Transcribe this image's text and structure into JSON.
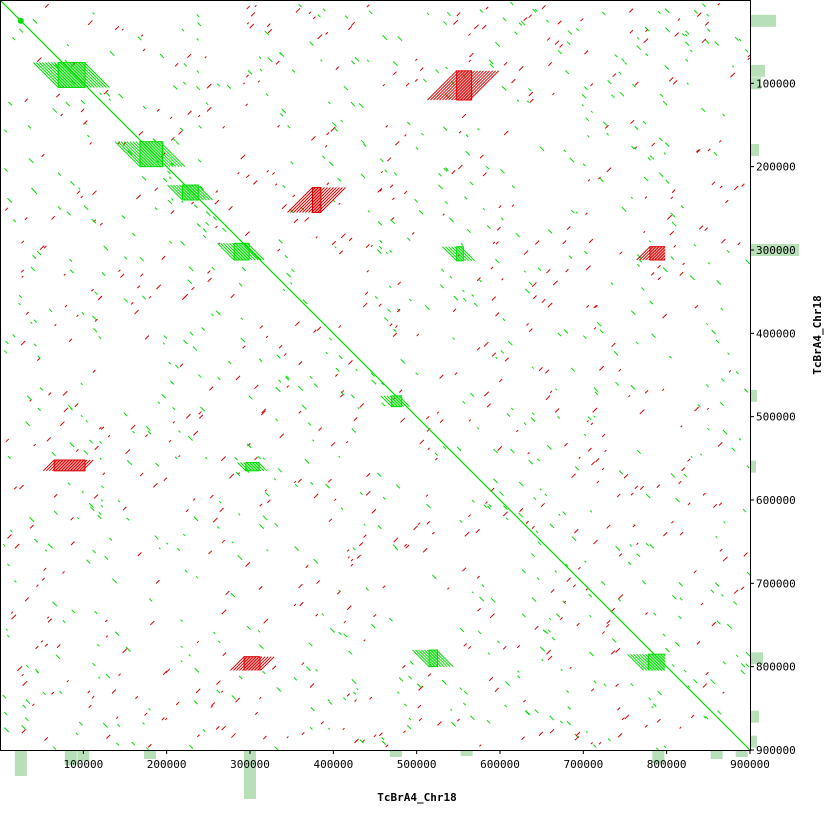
{
  "chart_data": {
    "type": "scatter",
    "title": "",
    "xlabel": "TcBrA4_Chr18",
    "ylabel": "TcBrA4_Chr18",
    "xlim": [
      0,
      900000
    ],
    "ylim": [
      0,
      900000
    ],
    "x_ticks": [
      {
        "value": 100000,
        "label": "100000"
      },
      {
        "value": 200000,
        "label": "200000"
      },
      {
        "value": 300000,
        "label": "300000"
      },
      {
        "value": 400000,
        "label": "400000"
      },
      {
        "value": 500000,
        "label": "500000"
      },
      {
        "value": 600000,
        "label": "600000"
      },
      {
        "value": 700000,
        "label": "700000"
      },
      {
        "value": 800000,
        "label": "800000"
      },
      {
        "value": 900000,
        "label": "900000"
      }
    ],
    "y_ticks": [
      {
        "value": 100000,
        "label": "100000"
      },
      {
        "value": 200000,
        "label": "200000"
      },
      {
        "value": 300000,
        "label": "300000"
      },
      {
        "value": 400000,
        "label": "400000"
      },
      {
        "value": 500000,
        "label": "500000"
      },
      {
        "value": 600000,
        "label": "600000"
      },
      {
        "value": 700000,
        "label": "700000"
      },
      {
        "value": 800000,
        "label": "800000"
      },
      {
        "value": 900000,
        "label": "900000"
      }
    ],
    "colors": {
      "forward": "#00dd00",
      "reverse": "#dd0000",
      "density": "#88cc88",
      "axis": "#000000"
    },
    "series": [
      {
        "name": "forward",
        "color": "#00dd00",
        "diagonal": [
          [
            0,
            0
          ],
          [
            900000,
            900000
          ]
        ]
      },
      {
        "name": "reverse",
        "color": "#dd0000"
      }
    ],
    "blocks": [
      {
        "strand": "forward",
        "x": [
          70000,
          102000
        ],
        "y": [
          75000,
          105000
        ]
      },
      {
        "strand": "forward",
        "x": [
          168000,
          195000
        ],
        "y": [
          170000,
          200000
        ]
      },
      {
        "strand": "forward",
        "x": [
          219000,
          238000
        ],
        "y": [
          222000,
          240000
        ]
      },
      {
        "strand": "forward",
        "x": [
          281000,
          299000
        ],
        "y": [
          292000,
          312000
        ]
      },
      {
        "strand": "forward",
        "x": [
          470000,
          482000
        ],
        "y": [
          475000,
          488000
        ]
      },
      {
        "strand": "forward",
        "x": [
          778000,
          802000
        ],
        "y": [
          785000,
          810000
        ]
      },
      {
        "strand": "reverse",
        "x": [
          548000,
          566000
        ],
        "y": [
          85000,
          120000
        ]
      },
      {
        "strand": "reverse",
        "x": [
          65000,
          102000
        ],
        "y": [
          552000,
          565000
        ]
      },
      {
        "strand": "reverse",
        "x": [
          293000,
          312000
        ],
        "y": [
          788000,
          808000
        ]
      },
      {
        "strand": "reverse",
        "x": [
          780000,
          802000
        ],
        "y": [
          296000,
          312000
        ]
      },
      {
        "strand": "forward",
        "x": [
          548000,
          556000
        ],
        "y": [
          296000,
          313000
        ]
      },
      {
        "strand": "forward",
        "x": [
          470000,
          485000
        ],
        "y": [
          855000,
          900000
        ]
      },
      {
        "strand": "forward",
        "x": [
          515000,
          525000
        ],
        "y": [
          780000,
          800000
        ]
      },
      {
        "strand": "forward",
        "x": [
          847000,
          885000
        ],
        "y": [
          470000,
          480000
        ]
      },
      {
        "strand": "forward",
        "x": [
          295000,
          311000
        ],
        "y": [
          555000,
          565000
        ]
      },
      {
        "strand": "reverse",
        "x": [
          375000,
          385000
        ],
        "y": [
          225000,
          255000
        ]
      }
    ]
  }
}
